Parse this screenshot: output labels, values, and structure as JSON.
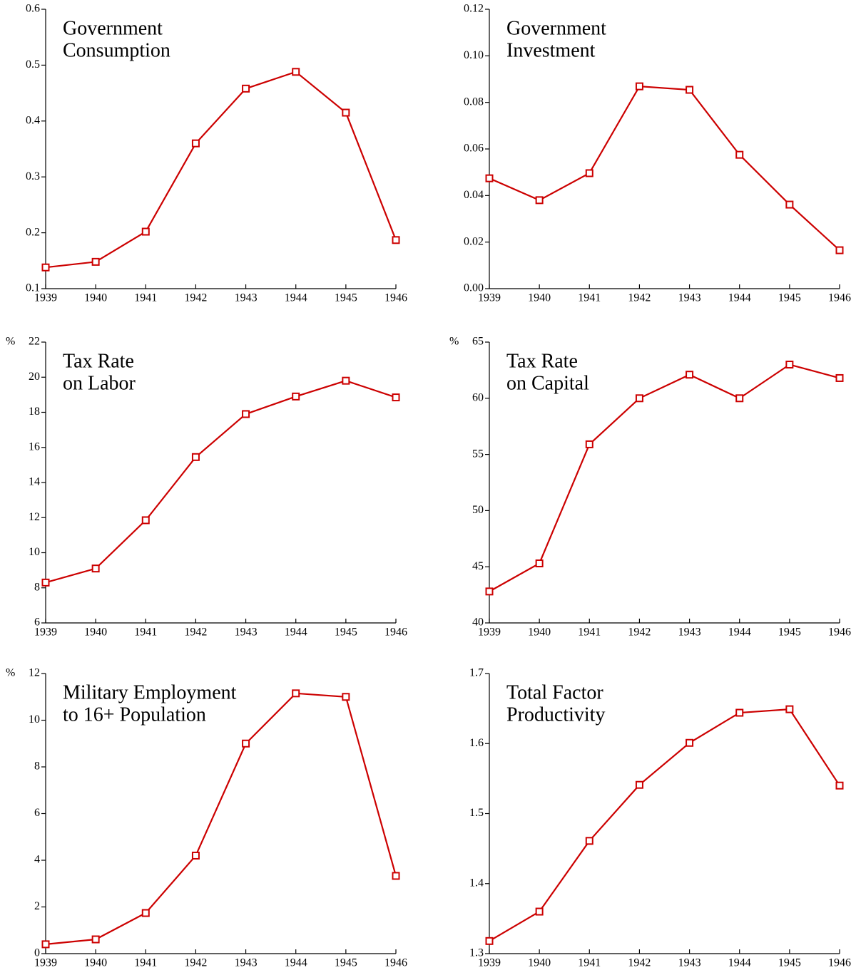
{
  "chart_data": [
    {
      "type": "line",
      "title": [
        "Government",
        "Consumption"
      ],
      "categories": [
        "1939",
        "1940",
        "1941",
        "1942",
        "1943",
        "1944",
        "1945",
        "1946"
      ],
      "values": [
        0.138,
        0.148,
        0.202,
        0.36,
        0.458,
        0.488,
        0.415,
        0.187
      ],
      "color": "#cc0000",
      "ylim": [
        0.1,
        0.6
      ],
      "yticks": [
        0.1,
        0.2,
        0.3,
        0.4,
        0.5,
        0.6
      ]
    },
    {
      "type": "line",
      "title": [
        "Government",
        "Investment"
      ],
      "categories": [
        "1939",
        "1940",
        "1941",
        "1942",
        "1943",
        "1944",
        "1945",
        "1946"
      ],
      "values": [
        0.0474,
        0.038,
        0.0496,
        0.0869,
        0.0854,
        0.0575,
        0.0361,
        0.0165
      ],
      "color": "#cc0000",
      "ylim": [
        0,
        0.12
      ],
      "yticks": [
        {
          "value": 0,
          "label": "0.00"
        },
        {
          "value": 0.02,
          "label": "0.02"
        },
        {
          "value": 0.04,
          "label": "0.04"
        },
        {
          "value": 0.06,
          "label": "0.06"
        },
        {
          "value": 0.08,
          "label": "0.08"
        },
        {
          "value": 0.1,
          "label": "0.10"
        },
        {
          "value": 0.12,
          "label": "0.12"
        }
      ]
    },
    {
      "type": "line",
      "title": [
        "Tax Rate",
        "on Labor"
      ],
      "y_unit": "%",
      "categories": [
        "1939",
        "1940",
        "1941",
        "1942",
        "1943",
        "1944",
        "1945",
        "1946"
      ],
      "values": [
        8.3,
        9.1,
        11.85,
        15.45,
        17.9,
        18.9,
        19.8,
        18.85
      ],
      "color": "#cc0000",
      "ylim": [
        6,
        22
      ],
      "yticks": [
        6,
        8,
        10,
        12,
        14,
        16,
        18,
        20,
        22
      ]
    },
    {
      "type": "line",
      "title": [
        "Tax Rate",
        "on Capital"
      ],
      "y_unit": "%",
      "categories": [
        "1939",
        "1940",
        "1941",
        "1942",
        "1943",
        "1944",
        "1945",
        "1946"
      ],
      "values": [
        42.8,
        45.3,
        55.9,
        60.0,
        62.1,
        60.0,
        63.0,
        61.8
      ],
      "color": "#cc0000",
      "ylim": [
        40,
        65
      ],
      "yticks": [
        40,
        45,
        50,
        55,
        60,
        65
      ]
    },
    {
      "type": "line",
      "title": [
        "Military Employment",
        "to 16+ Population"
      ],
      "y_unit": "%",
      "categories": [
        "1939",
        "1940",
        "1941",
        "1942",
        "1943",
        "1944",
        "1945",
        "1946"
      ],
      "values": [
        0.4,
        0.61,
        1.74,
        4.2,
        9.0,
        11.15,
        11.0,
        3.33
      ],
      "color": "#cc0000",
      "ylim": [
        0,
        12
      ],
      "yticks": [
        0,
        2,
        4,
        6,
        8,
        10,
        12
      ]
    },
    {
      "type": "line",
      "title": [
        "Total Factor",
        "Productivity"
      ],
      "categories": [
        "1939",
        "1940",
        "1941",
        "1942",
        "1943",
        "1944",
        "1945",
        "1946"
      ],
      "values": [
        1.318,
        1.36,
        1.461,
        1.541,
        1.601,
        1.644,
        1.649,
        1.54
      ],
      "color": "#cc0000",
      "ylim": [
        1.3,
        1.7
      ],
      "yticks": [
        1.3,
        1.4,
        1.5,
        1.6,
        1.7
      ]
    }
  ]
}
